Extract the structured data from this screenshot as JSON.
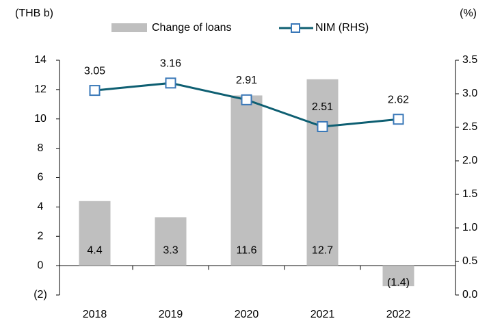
{
  "chart_data": {
    "type": "bar_line",
    "y_label": "(THB b)",
    "y2_label": "(%)",
    "categories": [
      "2018",
      "2019",
      "2020",
      "2021",
      "2022"
    ],
    "series": [
      {
        "name": "Change of loans",
        "type": "bar",
        "color": "#bfbfbf",
        "values": [
          4.4,
          3.3,
          11.6,
          12.7,
          -1.4
        ],
        "value_labels": [
          "4.4",
          "3.3",
          "11.6",
          "12.7",
          "(1.4)"
        ]
      },
      {
        "name": "NIM (RHS)",
        "type": "line",
        "axis": "y2",
        "color": "#0e5f72",
        "marker_color": "#3a78b8",
        "values": [
          3.05,
          3.16,
          2.91,
          2.51,
          2.62
        ]
      }
    ],
    "ylim": [
      -2,
      14
    ],
    "yticks": [
      {
        "value": -2,
        "label": "(2)"
      },
      0,
      2,
      4,
      6,
      8,
      10,
      12,
      14
    ],
    "y2lim": [
      0,
      3.5
    ],
    "y2ticks": [
      {
        "value": 0,
        "label": "0.0"
      },
      0.5,
      {
        "value": 1,
        "label": "1.0"
      },
      1.5,
      {
        "value": 2,
        "label": "2.0"
      },
      2.5,
      {
        "value": 3,
        "label": "3.0"
      },
      3.5
    ],
    "legend": "top"
  }
}
